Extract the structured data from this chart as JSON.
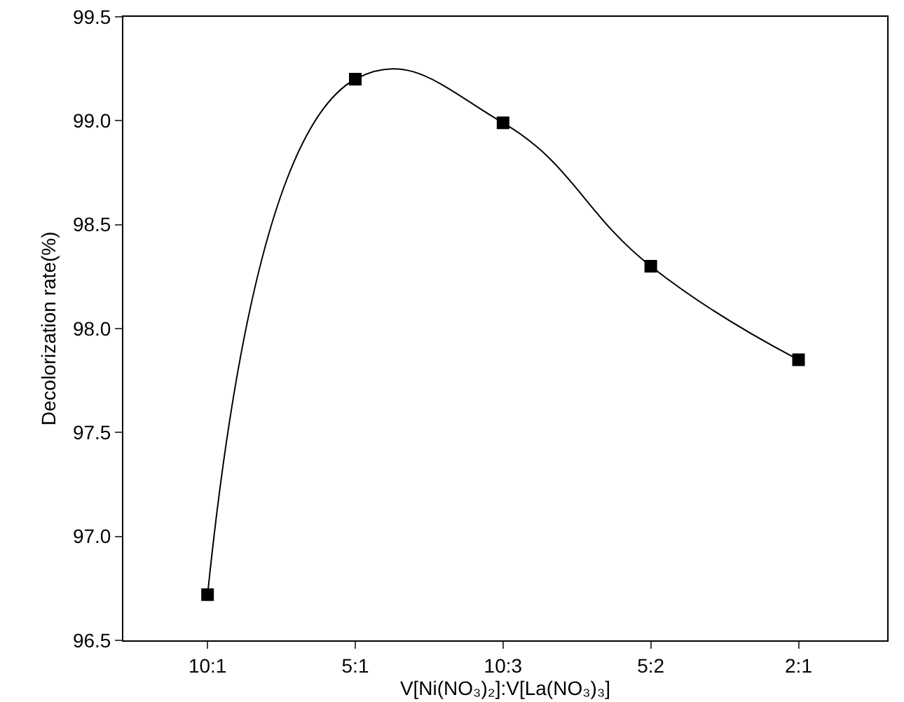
{
  "chart_data": {
    "type": "line",
    "xlabel": "V[Ni(NO₃)₂]:V[La(NO₃)₃]",
    "ylabel": "Decolorization rate(%)",
    "categories": [
      "10:1",
      "5:1",
      "10:3",
      "5:2",
      "2:1"
    ],
    "series": [
      {
        "color": "#000000",
        "values": [
          96.72,
          99.2,
          98.99,
          98.3,
          97.85
        ]
      }
    ],
    "ylim": [
      96.5,
      99.5
    ],
    "yticks": [
      {
        "value": 96.5,
        "label": "96.5"
      },
      {
        "value": 97,
        "label": "97.0"
      },
      {
        "value": 97.5,
        "label": "97.5"
      },
      {
        "value": 98,
        "label": "98.0"
      },
      {
        "value": 98.5,
        "label": "98.5"
      },
      {
        "value": 99,
        "label": "99.0"
      },
      {
        "value": 99.5,
        "label": "99.5"
      }
    ],
    "grid": false,
    "marker": "square",
    "line_style": "solid"
  }
}
